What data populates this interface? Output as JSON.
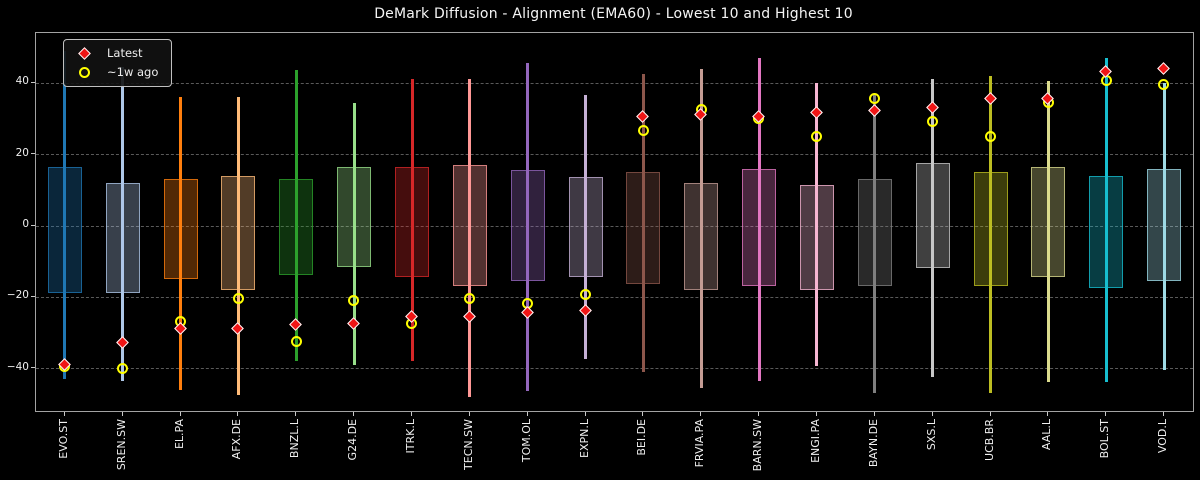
{
  "title": "DeMark Diffusion - Alignment (EMA60) - Lowest 10 and Highest 10",
  "legend": {
    "items": [
      {
        "label": "Latest",
        "marker": "diamond-icon",
        "color": "#f01515"
      },
      {
        "label": "~1w ago",
        "marker": "circle-icon",
        "color": "#ffff00"
      }
    ]
  },
  "chart_data": {
    "type": "boxplot",
    "title": "DeMark Diffusion - Alignment (EMA60) - Lowest 10 and Highest 10",
    "xlabel": "",
    "ylabel": "",
    "ylim": [
      -52,
      54
    ],
    "yticks": [
      -40,
      -20,
      0,
      20,
      40
    ],
    "grid": "horizontal-dashed",
    "legend_position": "upper-left",
    "marker_colors": {
      "latest": "#f01515",
      "week_ago": "#ffff00"
    },
    "categories": [
      "EVO.ST",
      "SREN.SW",
      "EL.PA",
      "AFX.DE",
      "BNZL.L",
      "G24.DE",
      "ITRK.L",
      "TECN.SW",
      "TOM.OL",
      "EXPN.L",
      "BEI.DE",
      "FRVIA.PA",
      "BARN.SW",
      "ENGI.PA",
      "BAYN.DE",
      "SXS.L",
      "UCB.BR",
      "AAL.L",
      "BOL.ST",
      "VOD.L"
    ],
    "series": [
      {
        "ticker": "EVO.ST",
        "color": "#1f77b4",
        "whisker_low": -43,
        "whisker_high": 49,
        "box_low": -19,
        "box_high": 16.5,
        "latest": -39,
        "week_ago": -39.5
      },
      {
        "ticker": "SREN.SW",
        "color": "#aec7e8",
        "whisker_low": -43.5,
        "whisker_high": 44.5,
        "box_low": -19,
        "box_high": 12,
        "latest": -33,
        "week_ago": -40
      },
      {
        "ticker": "EL.PA",
        "color": "#ff7f0e",
        "whisker_low": -46,
        "whisker_high": 36,
        "box_low": -15,
        "box_high": 13,
        "latest": -29,
        "week_ago": -27
      },
      {
        "ticker": "AFX.DE",
        "color": "#ffbb78",
        "whisker_low": -47.5,
        "whisker_high": 36,
        "box_low": -18,
        "box_high": 14,
        "latest": -29,
        "week_ago": -20.5
      },
      {
        "ticker": "BNZL.L",
        "color": "#2ca02c",
        "whisker_low": -38,
        "whisker_high": 43.5,
        "box_low": -14,
        "box_high": 13,
        "latest": -28,
        "week_ago": -32.5
      },
      {
        "ticker": "G24.DE",
        "color": "#98df8a",
        "whisker_low": -39,
        "whisker_high": 34.5,
        "box_low": -11.5,
        "box_high": 16.5,
        "latest": -27.5,
        "week_ago": -21
      },
      {
        "ticker": "ITRK.L",
        "color": "#d62728",
        "whisker_low": -38,
        "whisker_high": 41,
        "box_low": -14.5,
        "box_high": 16.5,
        "latest": -25.5,
        "week_ago": -27.5
      },
      {
        "ticker": "TECN.SW",
        "color": "#ff9896",
        "whisker_low": -48,
        "whisker_high": 41,
        "box_low": -17,
        "box_high": 17,
        "latest": -25.5,
        "week_ago": -20.5
      },
      {
        "ticker": "TOM.OL",
        "color": "#9467bd",
        "whisker_low": -46.5,
        "whisker_high": 45.5,
        "box_low": -15.5,
        "box_high": 15.5,
        "latest": -24.5,
        "week_ago": -22
      },
      {
        "ticker": "EXPN.L",
        "color": "#c5b0d5",
        "whisker_low": -37.5,
        "whisker_high": 36.5,
        "box_low": -14.5,
        "box_high": 13.5,
        "latest": -24,
        "week_ago": -19.5
      },
      {
        "ticker": "BEI.DE",
        "color": "#8c564b",
        "whisker_low": -41,
        "whisker_high": 42.5,
        "box_low": -16.5,
        "box_high": 15,
        "latest": 30.5,
        "week_ago": 26.5
      },
      {
        "ticker": "FRVIA.PA",
        "color": "#c49c94",
        "whisker_low": -45.5,
        "whisker_high": 44,
        "box_low": -18,
        "box_high": 12,
        "latest": 31,
        "week_ago": 32.5
      },
      {
        "ticker": "BARN.SW",
        "color": "#e377c2",
        "whisker_low": -43.5,
        "whisker_high": 47,
        "box_low": -17,
        "box_high": 16,
        "latest": 30.5,
        "week_ago": 30
      },
      {
        "ticker": "ENGI.PA",
        "color": "#f7b6d2",
        "whisker_low": -39.5,
        "whisker_high": 40,
        "box_low": -18,
        "box_high": 11.5,
        "latest": 31.5,
        "week_ago": 25
      },
      {
        "ticker": "BAYN.DE",
        "color": "#7f7f7f",
        "whisker_low": -47,
        "whisker_high": 37,
        "box_low": -17,
        "box_high": 13,
        "latest": 32,
        "week_ago": 35.5
      },
      {
        "ticker": "SXS.L",
        "color": "#c7c7c7",
        "whisker_low": -42.5,
        "whisker_high": 41,
        "box_low": -12,
        "box_high": 17.5,
        "latest": 33,
        "week_ago": 29
      },
      {
        "ticker": "UCB.BR",
        "color": "#bcbd22",
        "whisker_low": -47,
        "whisker_high": 42,
        "box_low": -17,
        "box_high": 15,
        "latest": 35.5,
        "week_ago": 25
      },
      {
        "ticker": "AAL.L",
        "color": "#dbdb8d",
        "whisker_low": -44,
        "whisker_high": 40.5,
        "box_low": -14.5,
        "box_high": 16.5,
        "latest": 35.5,
        "week_ago": 34.5
      },
      {
        "ticker": "BOL.ST",
        "color": "#17becf",
        "whisker_low": -44,
        "whisker_high": 47,
        "box_low": -17.5,
        "box_high": 14,
        "latest": 43,
        "week_ago": 40.5
      },
      {
        "ticker": "VOD.L",
        "color": "#9edae5",
        "whisker_low": -40.5,
        "whisker_high": 40,
        "box_low": -15.5,
        "box_high": 16,
        "latest": 44,
        "week_ago": 39.5
      }
    ]
  }
}
